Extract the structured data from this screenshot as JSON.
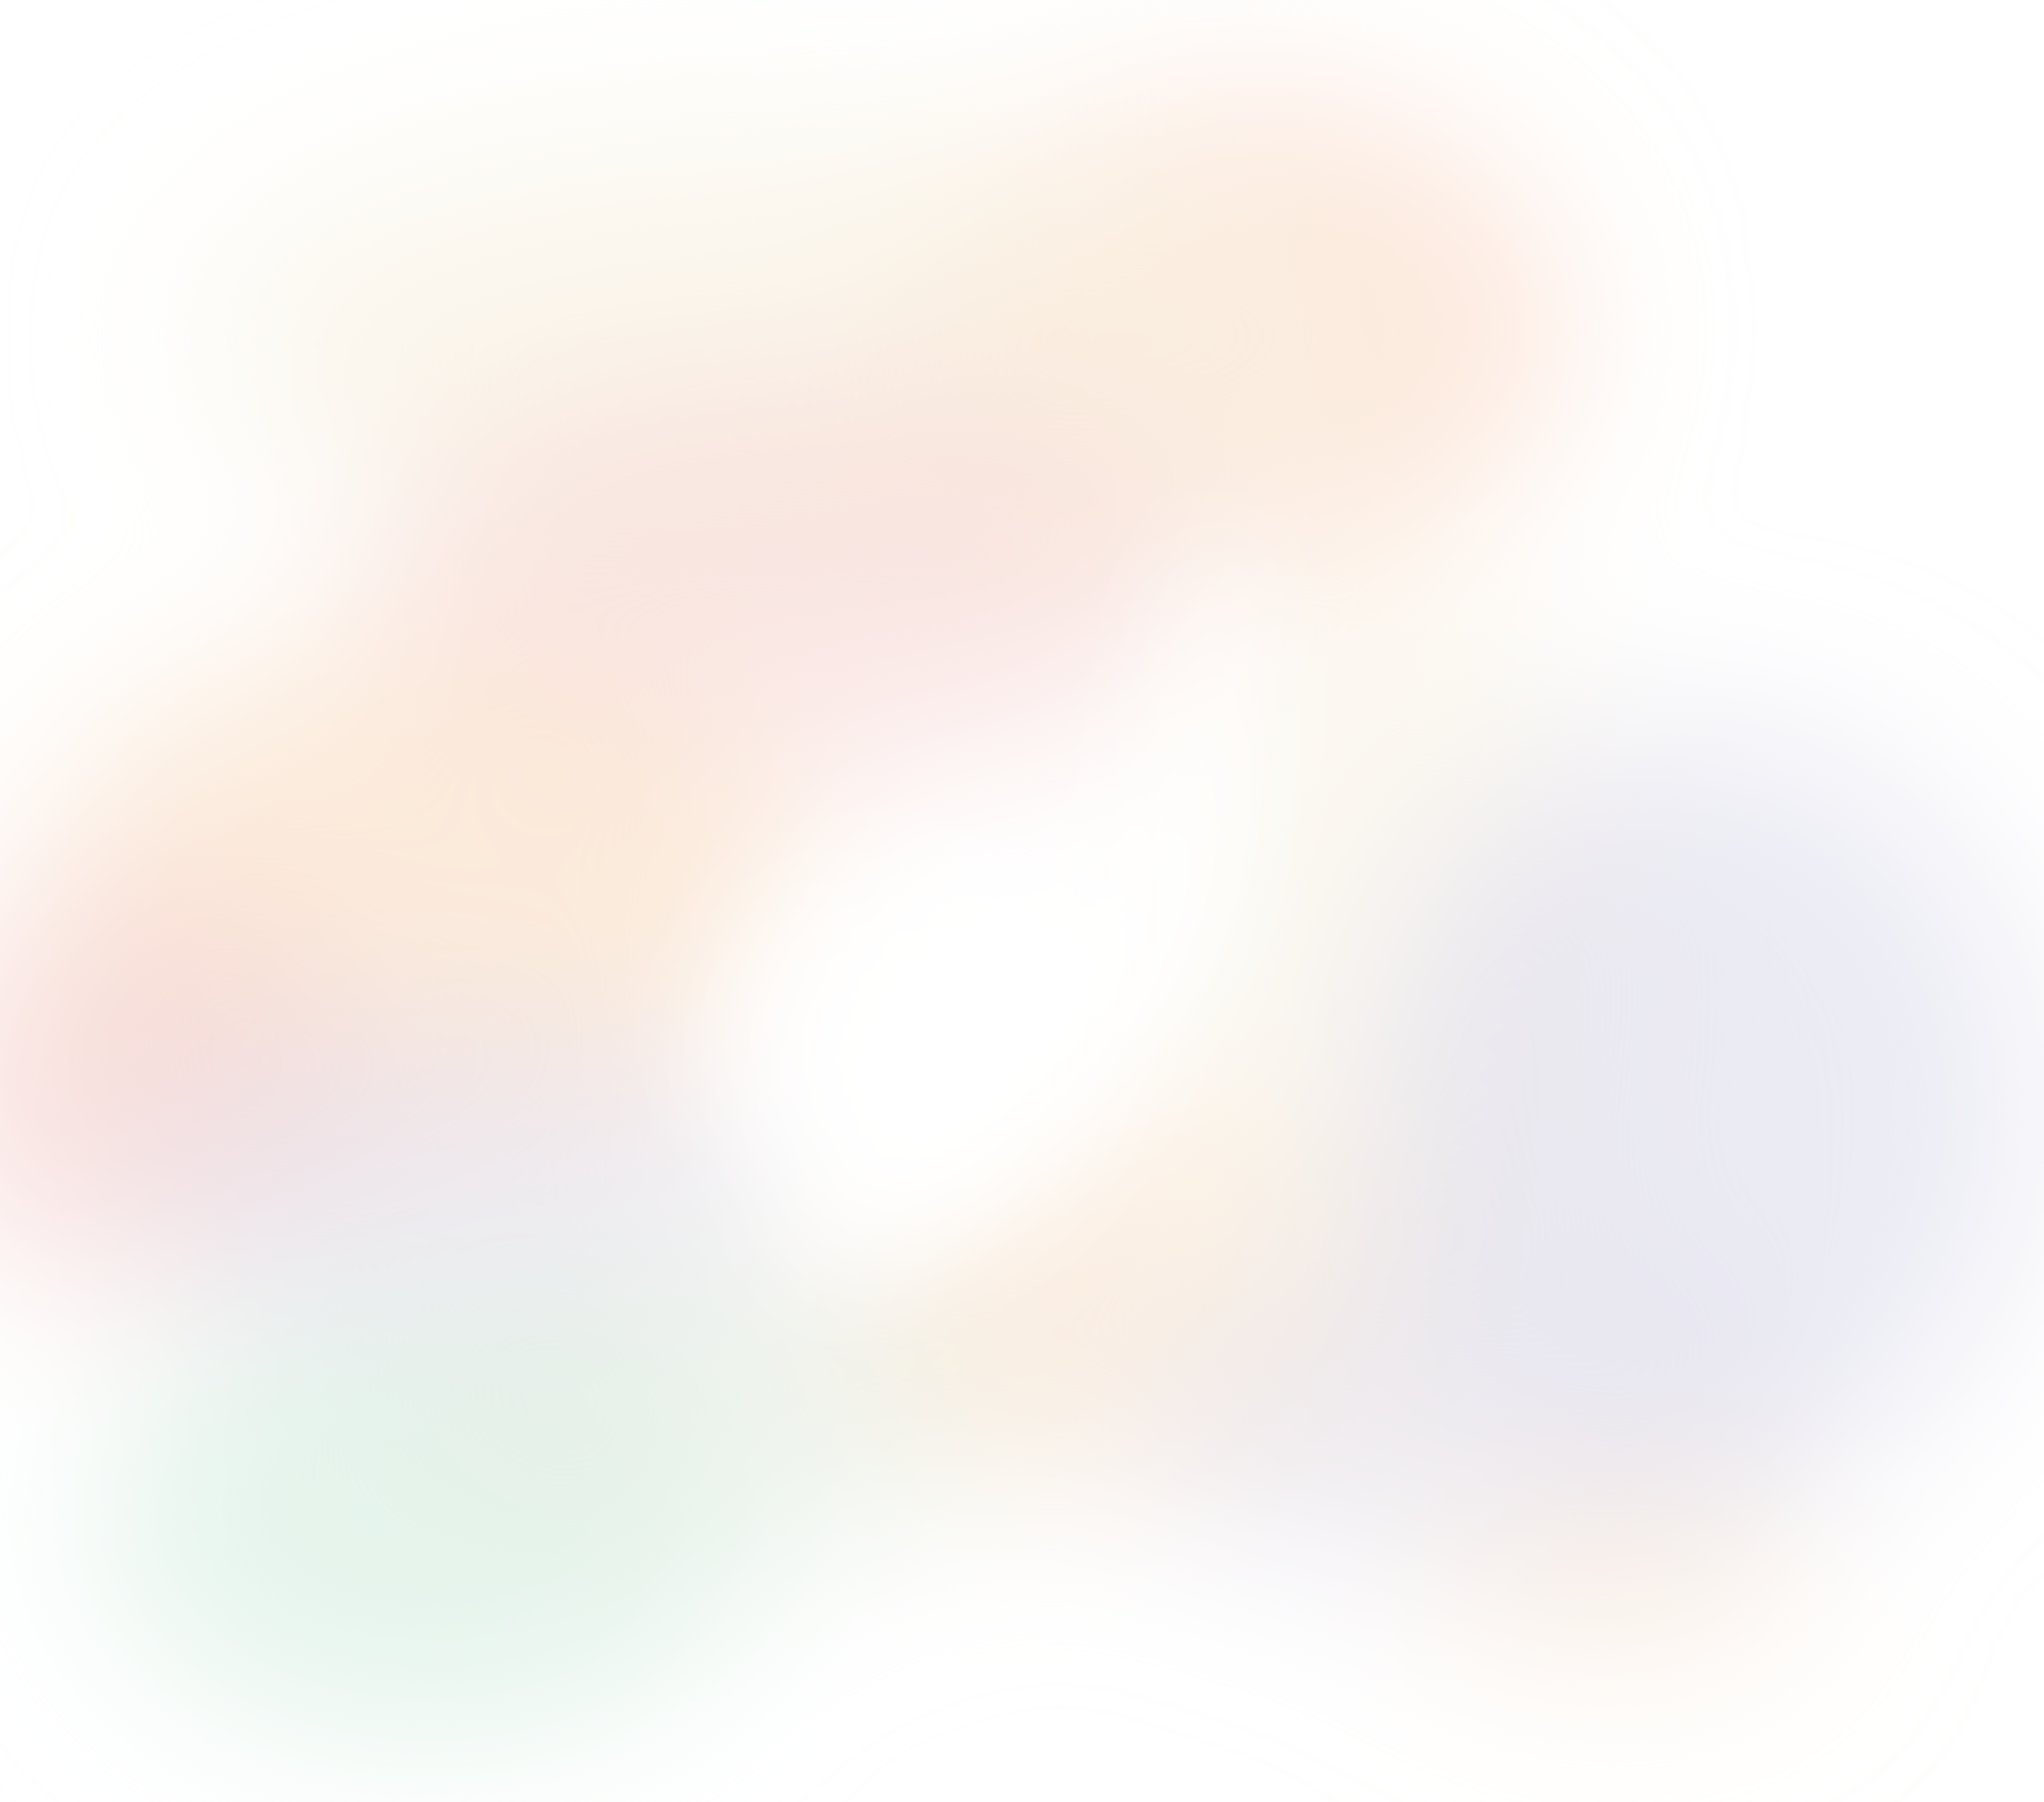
{
  "background": {
    "base_color": "#ffffff",
    "palette": {
      "peach": "#fcd9c8",
      "apricot": "#fbe3cc",
      "blush": "#f6d6d2",
      "lavender": "#e3e2ef",
      "lilac": "#e6e1ee",
      "mint": "#d7eee2",
      "sage": "#e6efe4",
      "cream": "#faf3e6"
    }
  }
}
